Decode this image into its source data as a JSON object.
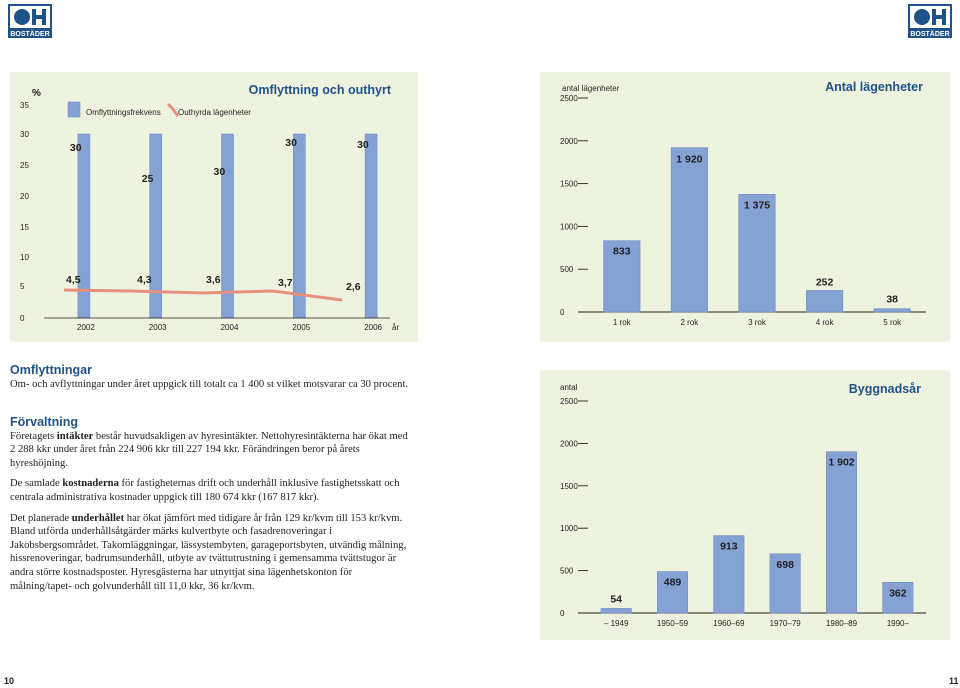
{
  "logo": {
    "text": "BOSTÄDER"
  },
  "page_numbers": {
    "left": "10",
    "right": "11"
  },
  "chart_data": [
    {
      "type": "bar",
      "title": "Omflyttning och outhyrt",
      "ylabel": "%",
      "categories": [
        "2002",
        "2003",
        "2004",
        "2005",
        "2006"
      ],
      "x_unit": "år",
      "ylim": [
        0,
        35
      ],
      "yticks": [
        "35",
        "30",
        "25",
        "20",
        "15",
        "10",
        "5",
        "0"
      ],
      "series": [
        {
          "name": "Omflyttningsfrekvens",
          "type": "bar",
          "color": "#84a2d4",
          "values": [
            30,
            25,
            30,
            30,
            30
          ],
          "labels": [
            "30",
            "25",
            "30",
            "30",
            "30"
          ]
        },
        {
          "name": "Outhyrda lägenheter",
          "type": "line",
          "color": "#e88f7d",
          "values": [
            4.5,
            4.3,
            3.6,
            3.7,
            2.6
          ],
          "labels": [
            "4,5",
            "4,3",
            "3,6",
            "3,7",
            "2,6"
          ]
        }
      ]
    },
    {
      "type": "bar",
      "title": "Antal lägenheter",
      "ylabel": "antal lägenheter",
      "categories": [
        "1 rok",
        "2 rok",
        "3 rok",
        "4 rok",
        "5 rok"
      ],
      "values": [
        833,
        1920,
        1375,
        252,
        38
      ],
      "labels": [
        "833",
        "1 920",
        "1 375",
        "252",
        "38"
      ],
      "ylim": [
        0,
        2500
      ],
      "yticks": [
        "2500",
        "2000",
        "1500",
        "1000",
        "500",
        "0"
      ],
      "color": "#84a2d4"
    },
    {
      "type": "bar",
      "title": "Byggnadsår",
      "ylabel": "antal",
      "categories": [
        "– 1949",
        "1950–59",
        "1960–69",
        "1970–79",
        "1980–89",
        "1990–"
      ],
      "values": [
        54,
        489,
        913,
        698,
        1902,
        362
      ],
      "labels": [
        "54",
        "489",
        "913",
        "698",
        "1 902",
        "362"
      ],
      "ylim": [
        0,
        2500
      ],
      "yticks": [
        "2500",
        "2000",
        "1500",
        "1000",
        "500",
        "0"
      ],
      "color": "#84a2d4"
    }
  ],
  "sections": {
    "omflyttningar": {
      "heading": "Omflyttningar",
      "body": "Om- och avflyttningar under året uppgick till totalt ca 1 400 st vilket motsvarar ca 30 procent."
    },
    "forvaltning": {
      "heading": "Förvaltning",
      "p1_pre": "Företagets ",
      "p1_bold": "intäkter",
      "p1_post": " består huvudsakligen av hyresintäkter. Nettohyresintäkterna har ökat med 2 288 kkr under året från 224 906 kkr till 227 194 kkr. Förändringen beror på årets hyreshöjning.",
      "p2_pre": "De samlade ",
      "p2_bold": "kostnaderna",
      "p2_post": " för fastigheternas drift och underhåll inklusive fastighetsskatt och centrala administrativa kostnader uppgick till 180 674 kkr (167 817 kkr).",
      "p3_pre": "Det planerade ",
      "p3_bold": "underhållet",
      "p3_post": " har ökat jämfört med tidigare år från 129 kr/kvm till 153 kr/kvm. Bland utförda underhållsåtgärder märks kulvertbyte och fasadrenoveringar i Jakobsbergsområdet. Takomläggningar, lässystembyten, garageportsbyten, utvändig målning, hissrenoveringar, badrumsunderhåll, utbyte av tvättutrustning i gemensamma tvättstugor är andra större kostnadsposter. Hyresgästerna har utnyttjat sina lägenhetskonton för målning/tapet- och golvunderhåll till 11,0 kkr, 36 kr/kvm."
    }
  }
}
